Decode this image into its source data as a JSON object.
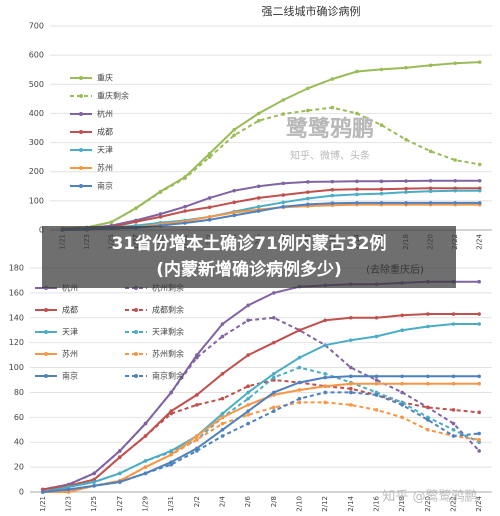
{
  "chart_data": [
    {
      "type": "line",
      "title": "强二线城市确诊病例",
      "x": [
        "1/21",
        "1/23",
        "1/25",
        "1/27",
        "1/29",
        "1/31",
        "2/2",
        "2/4",
        "2/6",
        "2/8",
        "2/10",
        "2/12",
        "2/14",
        "2/16",
        "2/18",
        "2/20",
        "2/22",
        "2/24"
      ],
      "ylim": [
        0,
        700
      ],
      "yticks": [
        0,
        100,
        200,
        300,
        400,
        500,
        600,
        700
      ],
      "grid": true,
      "legend": "upper left",
      "series": [
        {
          "name": "重庆",
          "color": "#9bbb59",
          "dashed": false,
          "values": [
            5,
            9,
            27,
            75,
            132,
            182,
            262,
            344,
            400,
            446,
            486,
            518,
            544,
            551,
            557,
            565,
            572,
            576
          ]
        },
        {
          "name": "重庆剩余",
          "color": "#9bbb59",
          "dashed": true,
          "values": [
            5,
            9,
            27,
            74,
            130,
            178,
            250,
            325,
            375,
            398,
            410,
            420,
            400,
            360,
            310,
            270,
            240,
            225
          ]
        },
        {
          "name": "杭州",
          "color": "#8064a2",
          "dashed": false,
          "values": [
            2,
            6,
            15,
            33,
            55,
            80,
            110,
            135,
            150,
            160,
            165,
            166,
            167,
            167,
            168,
            169,
            169,
            169
          ]
        },
        {
          "name": "成都",
          "color": "#c0504d",
          "dashed": false,
          "values": [
            2,
            5,
            10,
            28,
            45,
            65,
            78,
            95,
            110,
            120,
            130,
            138,
            140,
            140,
            142,
            143,
            143,
            143
          ]
        },
        {
          "name": "天津",
          "color": "#4bacc6",
          "dashed": false,
          "values": [
            0,
            4,
            8,
            15,
            25,
            33,
            45,
            63,
            80,
            95,
            108,
            118,
            122,
            125,
            130,
            133,
            135,
            135
          ]
        },
        {
          "name": "苏州",
          "color": "#f79646",
          "dashed": false,
          "values": [
            0,
            0,
            5,
            9,
            20,
            30,
            45,
            60,
            70,
            78,
            82,
            85,
            87,
            87,
            87,
            87,
            87,
            87
          ]
        },
        {
          "name": "南京",
          "color": "#4f81bd",
          "dashed": false,
          "values": [
            0,
            2,
            5,
            8,
            15,
            24,
            35,
            50,
            65,
            80,
            88,
            92,
            93,
            93,
            93,
            93,
            93,
            93
          ]
        }
      ]
    },
    {
      "type": "line",
      "subtitle": "(去除重庆后)",
      "x": [
        "1/21",
        "1/23",
        "1/25",
        "1/27",
        "1/29",
        "1/31",
        "2/2",
        "2/4",
        "2/6",
        "2/8",
        "2/10",
        "2/12",
        "2/14",
        "2/16",
        "2/18",
        "2/20",
        "2/22",
        "2/24"
      ],
      "ylim": [
        0,
        180
      ],
      "yticks": [
        0,
        20,
        40,
        60,
        80,
        100,
        120,
        140,
        160,
        180
      ],
      "grid": true,
      "legend": "upper left",
      "series": [
        {
          "name": "杭州",
          "color": "#8064a2",
          "dashed": false,
          "values": [
            2,
            6,
            15,
            33,
            55,
            80,
            110,
            135,
            150,
            160,
            165,
            166,
            167,
            167,
            168,
            169,
            169,
            169
          ]
        },
        {
          "name": "杭州剩余",
          "color": "#8064a2",
          "dashed": true,
          "values": [
            2,
            6,
            15,
            33,
            55,
            80,
            108,
            125,
            138,
            140,
            130,
            118,
            100,
            90,
            80,
            68,
            55,
            33
          ]
        },
        {
          "name": "成都",
          "color": "#c0504d",
          "dashed": false,
          "values": [
            2,
            5,
            10,
            28,
            45,
            65,
            78,
            95,
            110,
            120,
            130,
            138,
            140,
            140,
            142,
            143,
            143,
            143
          ]
        },
        {
          "name": "成都剩余",
          "color": "#c0504d",
          "dashed": true,
          "values": [
            2,
            5,
            10,
            28,
            45,
            63,
            70,
            75,
            85,
            90,
            88,
            85,
            83,
            78,
            72,
            68,
            66,
            64
          ]
        },
        {
          "name": "天津",
          "color": "#4bacc6",
          "dashed": false,
          "values": [
            0,
            4,
            8,
            15,
            25,
            33,
            45,
            63,
            80,
            95,
            108,
            118,
            122,
            125,
            130,
            133,
            135,
            135
          ]
        },
        {
          "name": "天津剩余",
          "color": "#4bacc6",
          "dashed": true,
          "values": [
            0,
            4,
            8,
            15,
            25,
            32,
            42,
            60,
            75,
            92,
            100,
            95,
            88,
            80,
            72,
            60,
            50,
            40
          ]
        },
        {
          "name": "苏州",
          "color": "#f79646",
          "dashed": false,
          "values": [
            0,
            0,
            5,
            9,
            20,
            30,
            45,
            60,
            70,
            78,
            82,
            85,
            87,
            87,
            87,
            87,
            87,
            87
          ]
        },
        {
          "name": "苏州剩余",
          "color": "#f79646",
          "dashed": true,
          "values": [
            0,
            0,
            5,
            9,
            20,
            30,
            42,
            55,
            62,
            68,
            72,
            72,
            70,
            66,
            60,
            50,
            45,
            42
          ]
        },
        {
          "name": "南京",
          "color": "#4f81bd",
          "dashed": false,
          "values": [
            0,
            2,
            5,
            8,
            15,
            24,
            35,
            50,
            65,
            80,
            88,
            92,
            93,
            93,
            93,
            93,
            93,
            93
          ]
        },
        {
          "name": "南京剩余",
          "color": "#4f81bd",
          "dashed": true,
          "values": [
            0,
            2,
            5,
            8,
            15,
            22,
            33,
            45,
            55,
            65,
            75,
            80,
            80,
            78,
            70,
            58,
            45,
            47
          ]
        }
      ]
    }
  ],
  "banner": [
    "31省份增本土确诊71例内蒙古32例",
    "(内蒙新增确诊病例多少)"
  ],
  "watermarks": [
    "鹭鹭鸦鹏",
    "知乎、微博、头条",
    "知乎 @鹭鹭鸦鹏"
  ]
}
